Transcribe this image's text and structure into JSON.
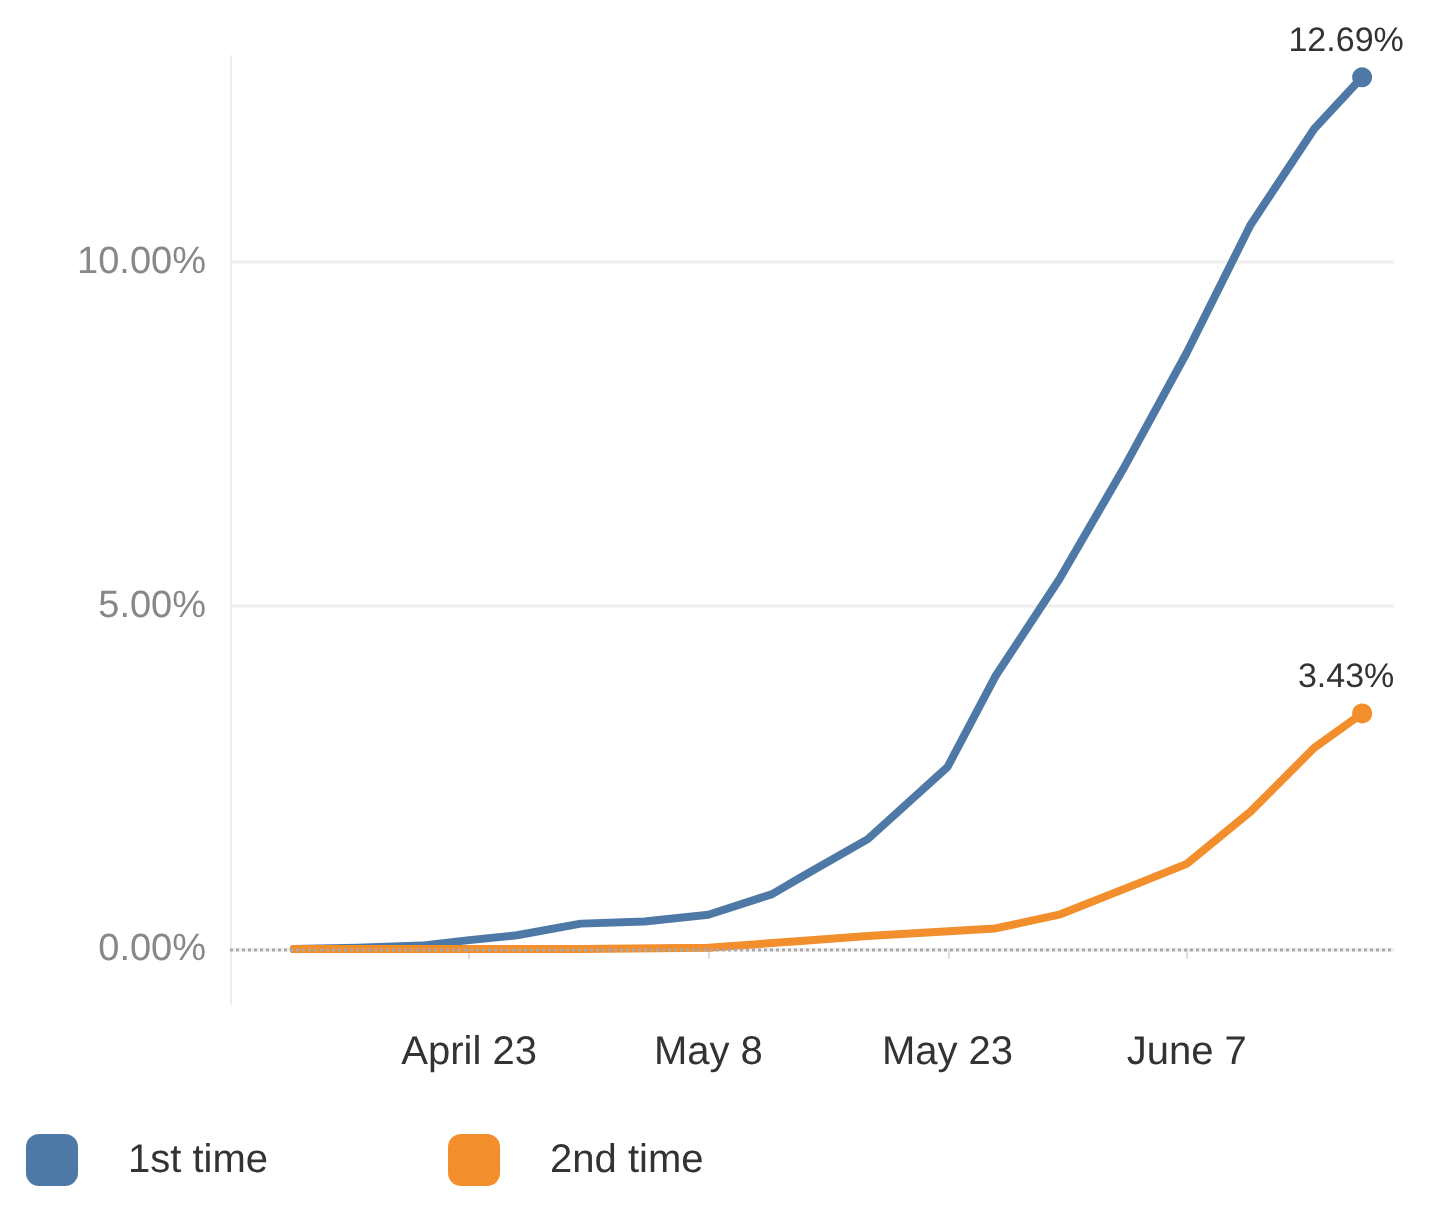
{
  "chart_data": {
    "type": "line",
    "series": [
      {
        "name": "1st time",
        "color": "#4e79a7",
        "x": [
          "--04-12",
          "--04-16",
          "--04-20",
          "--04-23",
          "--04-26",
          "--04-30",
          "--05-04",
          "--05-08",
          "--05-12",
          "--05-14",
          "--05-18",
          "--05-23",
          "--05-26",
          "--05-30",
          "--06-03",
          "--06-07",
          "--06-11",
          "--06-15",
          "--06-18"
        ],
        "values": [
          0,
          0.02,
          0.05,
          0.13,
          0.2,
          0.37,
          0.4,
          0.5,
          0.8,
          1.07,
          1.6,
          2.65,
          3.97,
          5.38,
          6.98,
          8.68,
          10.54,
          11.94,
          12.69
        ],
        "value_labels": [
          null,
          null,
          null,
          null,
          null,
          null,
          null,
          null,
          null,
          null,
          null,
          null,
          null,
          null,
          null,
          null,
          null,
          null,
          "12.69%"
        ]
      },
      {
        "name": "2nd time",
        "color": "#f28e2b",
        "x": [
          "--04-12",
          "--04-20",
          "--04-30",
          "--05-08",
          "--05-14",
          "--05-18",
          "--05-26",
          "--05-30",
          "--06-04",
          "--06-07",
          "--06-11",
          "--06-15",
          "--06-18"
        ],
        "values": [
          0,
          0,
          0,
          0.02,
          0.12,
          0.19,
          0.3,
          0.5,
          0.96,
          1.24,
          2.0,
          2.93,
          3.43
        ],
        "value_labels": [
          null,
          null,
          null,
          null,
          null,
          null,
          null,
          null,
          null,
          null,
          null,
          null,
          "3.43%"
        ]
      }
    ],
    "xlim": [
      "--04-08",
      "--06-20"
    ],
    "xticks": [
      {
        "value": "--04-23",
        "label": "April 23"
      },
      {
        "value": "--05-08",
        "label": "May 8"
      },
      {
        "value": "--05-23",
        "label": "May 23"
      },
      {
        "value": "--06-07",
        "label": "June 7"
      }
    ],
    "ylim": [
      -0.8,
      13
    ],
    "yticks": [
      {
        "value": 0,
        "label": "0.00%"
      },
      {
        "value": 5,
        "label": "5.00%"
      },
      {
        "value": 10,
        "label": "10.00%"
      }
    ],
    "ref_lines": [
      {
        "axis": "y",
        "value": 0,
        "line_style": "dotted",
        "color": "#aaaaaa"
      }
    ],
    "grid": "y",
    "legend": "bottom left",
    "marker": "none",
    "line_style": "solid"
  }
}
